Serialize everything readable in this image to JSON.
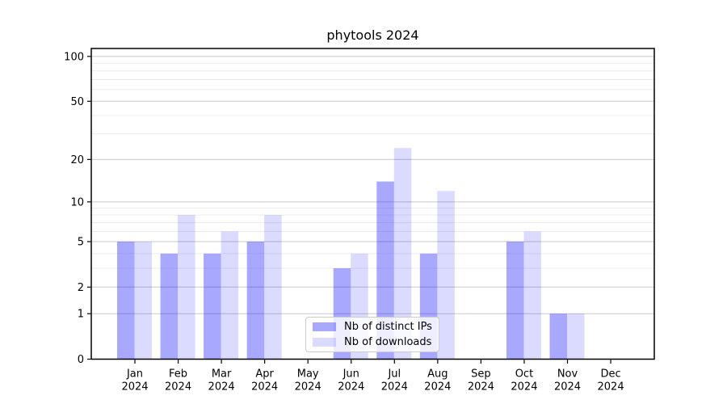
{
  "chart_data": {
    "type": "bar",
    "title": "phytools 2024",
    "categories": [
      "Jan",
      "Feb",
      "Mar",
      "Apr",
      "May",
      "Jun",
      "Jul",
      "Aug",
      "Sep",
      "Oct",
      "Nov",
      "Dec"
    ],
    "category_year": "2024",
    "series": [
      {
        "name": "Nb of distinct IPs",
        "color": "rgba(0,0,255,0.34)",
        "values": [
          5,
          4,
          4,
          5,
          0,
          3,
          14,
          4,
          0,
          5,
          1,
          0
        ]
      },
      {
        "name": "Nb of downloads",
        "color": "rgba(0,0,255,0.14)",
        "values": [
          5,
          8,
          6,
          8,
          0,
          4,
          24,
          12,
          0,
          6,
          1,
          0
        ]
      }
    ],
    "yscale": "log1p",
    "ylim": [
      0,
      113
    ],
    "yticks": [
      0,
      1,
      2,
      5,
      10,
      20,
      50,
      100
    ],
    "minor_gridlines": [
      3,
      4,
      6,
      7,
      8,
      9,
      30,
      40,
      60,
      70,
      80,
      90
    ],
    "legend_position": "lower center",
    "colors": {
      "major_grid": "#c9c9c9",
      "minor_grid": "#ececec",
      "axis": "#000000",
      "tick_label": "#000000"
    }
  }
}
